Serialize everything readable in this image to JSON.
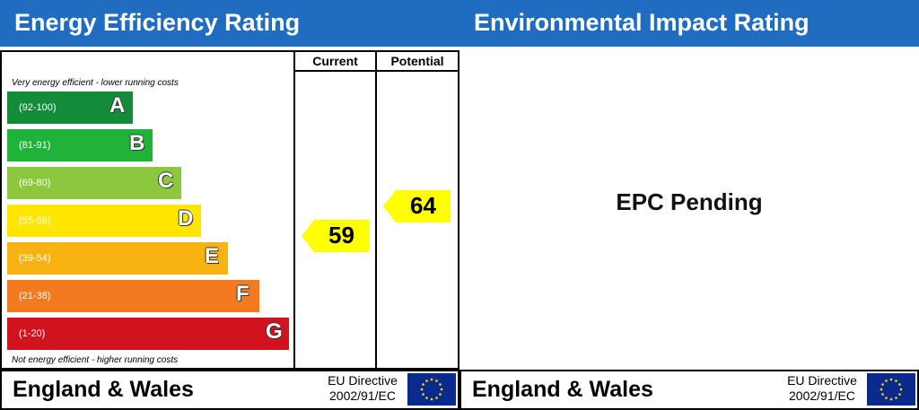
{
  "left": {
    "title": "Energy Efficiency Rating",
    "columns": [
      "Current",
      "Potential"
    ],
    "top_caption": "Very energy efficient - lower running costs",
    "bottom_caption": "Not energy efficient - higher running costs",
    "footer": {
      "country": "England & Wales",
      "directive_line1": "EU Directive",
      "directive_line2": "2002/91/EC"
    }
  },
  "right": {
    "title": "Environmental Impact Rating",
    "pending": "EPC Pending",
    "footer": {
      "country": "England & Wales",
      "directive_line1": "EU Directive",
      "directive_line2": "2002/91/EC"
    }
  },
  "chart_data": {
    "type": "bar",
    "title": "Energy Efficiency Rating",
    "categories": [
      "A",
      "B",
      "C",
      "D",
      "E",
      "F",
      "G"
    ],
    "ranges": [
      "(92-100)",
      "(81-91)",
      "(69-80)",
      "(55-68)",
      "(39-54)",
      "(21-38)",
      "(1-20)"
    ],
    "colors": [
      "#138b38",
      "#1fb33a",
      "#8dc63f",
      "#ffe600",
      "#f8b313",
      "#f47a1f",
      "#d0131f"
    ],
    "current": {
      "label": "Current",
      "value": 59
    },
    "potential": {
      "label": "Potential",
      "value": 64
    }
  }
}
